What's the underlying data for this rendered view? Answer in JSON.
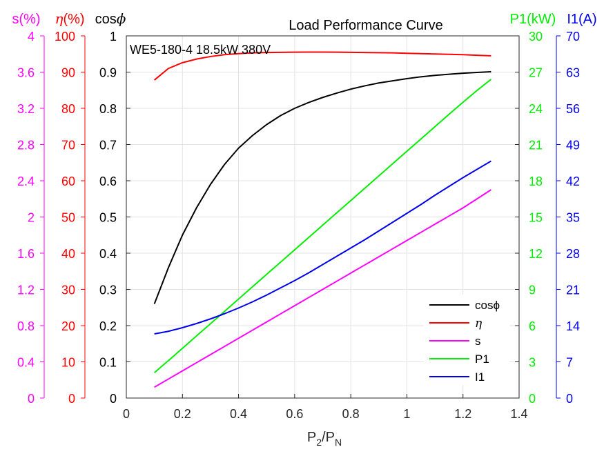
{
  "chart_data": {
    "type": "line",
    "title": "Load Performance Curve",
    "annotation": "WE5-180-4 18.5kW 380V",
    "xlabel": {
      "base": "P",
      "sub1": "2",
      "sep": "/P",
      "sub2": "N"
    },
    "grid": true,
    "legend_position": "bottom-right",
    "x_axis": {
      "range": [
        0,
        1.4
      ],
      "ticks": [
        0,
        0.2,
        0.4,
        0.6,
        0.8,
        1,
        1.2,
        1.4
      ],
      "tick_labels": [
        "0",
        "0.2",
        "0.4",
        "0.6",
        "0.8",
        "1",
        "1.2",
        "1.4"
      ]
    },
    "axes": [
      {
        "key": "s",
        "label": "s(%)",
        "color": "#ff00ff",
        "range": [
          0,
          4
        ],
        "tick_labels": [
          "0",
          "0.4",
          "0.8",
          "1.2",
          "1.6",
          "2",
          "2.4",
          "2.8",
          "3.2",
          "3.6",
          "4"
        ]
      },
      {
        "key": "eta",
        "label_symbol": "η",
        "label_unit": "(%)",
        "color": "#ff0000",
        "range": [
          0,
          100
        ],
        "tick_labels": [
          "0",
          "10",
          "20",
          "30",
          "40",
          "50",
          "60",
          "70",
          "80",
          "90",
          "100"
        ]
      },
      {
        "key": "cos",
        "label_base": "cos",
        "label_symbol": "ϕ",
        "color": "#000000",
        "range": [
          0,
          1
        ],
        "tick_labels": [
          "0",
          "0.1",
          "0.2",
          "0.3",
          "0.4",
          "0.5",
          "0.6",
          "0.7",
          "0.8",
          "0.9",
          "1"
        ]
      },
      {
        "key": "p1",
        "label": "P1(kW)",
        "color": "#00ee00",
        "range": [
          0,
          30
        ],
        "tick_labels": [
          "0",
          "3",
          "6",
          "9",
          "12",
          "15",
          "18",
          "21",
          "24",
          "27",
          "30"
        ]
      },
      {
        "key": "i1",
        "label": "I1(A)",
        "color": "#0000ee",
        "range": [
          0,
          70
        ],
        "tick_labels": [
          "0",
          "7",
          "14",
          "21",
          "28",
          "35",
          "42",
          "49",
          "56",
          "63",
          "70"
        ]
      }
    ],
    "x": [
      0.1,
      0.15,
      0.2,
      0.25,
      0.3,
      0.35,
      0.4,
      0.45,
      0.5,
      0.55,
      0.6,
      0.65,
      0.7,
      0.75,
      0.8,
      0.85,
      0.9,
      0.95,
      1.0,
      1.05,
      1.1,
      1.15,
      1.2,
      1.25,
      1.3
    ],
    "series": [
      {
        "name": "cosϕ",
        "axis": "cos",
        "color": "#000000",
        "values": [
          0.26,
          0.36,
          0.45,
          0.525,
          0.59,
          0.645,
          0.69,
          0.725,
          0.755,
          0.78,
          0.8,
          0.816,
          0.83,
          0.842,
          0.853,
          0.862,
          0.87,
          0.876,
          0.882,
          0.887,
          0.891,
          0.894,
          0.897,
          0.899,
          0.901
        ]
      },
      {
        "name": "η",
        "axis": "eta",
        "color": "#ff0000",
        "values": [
          87.8,
          91.0,
          92.6,
          93.6,
          94.3,
          94.8,
          95.1,
          95.3,
          95.4,
          95.45,
          95.5,
          95.52,
          95.52,
          95.5,
          95.45,
          95.4,
          95.35,
          95.3,
          95.2,
          95.1,
          95.0,
          94.9,
          94.8,
          94.65,
          94.5
        ]
      },
      {
        "name": "s",
        "axis": "s",
        "color": "#ff00ff",
        "values": [
          0.12,
          0.21,
          0.3,
          0.39,
          0.48,
          0.57,
          0.66,
          0.75,
          0.84,
          0.93,
          1.02,
          1.11,
          1.2,
          1.29,
          1.38,
          1.47,
          1.56,
          1.65,
          1.74,
          1.83,
          1.92,
          2.01,
          2.1,
          2.2,
          2.3
        ]
      },
      {
        "name": "P1",
        "axis": "p1",
        "color": "#00ee00",
        "values": [
          2.1,
          3.1,
          4.12,
          5.14,
          6.16,
          7.18,
          8.2,
          9.22,
          10.24,
          11.26,
          12.28,
          13.3,
          14.32,
          15.34,
          16.36,
          17.38,
          18.4,
          19.42,
          20.44,
          21.46,
          22.48,
          23.5,
          24.5,
          25.48,
          26.4
        ]
      },
      {
        "name": "I1",
        "axis": "i1",
        "color": "#0000ee",
        "values": [
          12.4,
          12.9,
          13.6,
          14.4,
          15.3,
          16.3,
          17.4,
          18.6,
          19.9,
          21.3,
          22.7,
          24.2,
          25.8,
          27.4,
          29.0,
          30.6,
          32.3,
          34.0,
          35.7,
          37.4,
          39.2,
          40.9,
          42.6,
          44.2,
          45.8
        ]
      }
    ]
  }
}
